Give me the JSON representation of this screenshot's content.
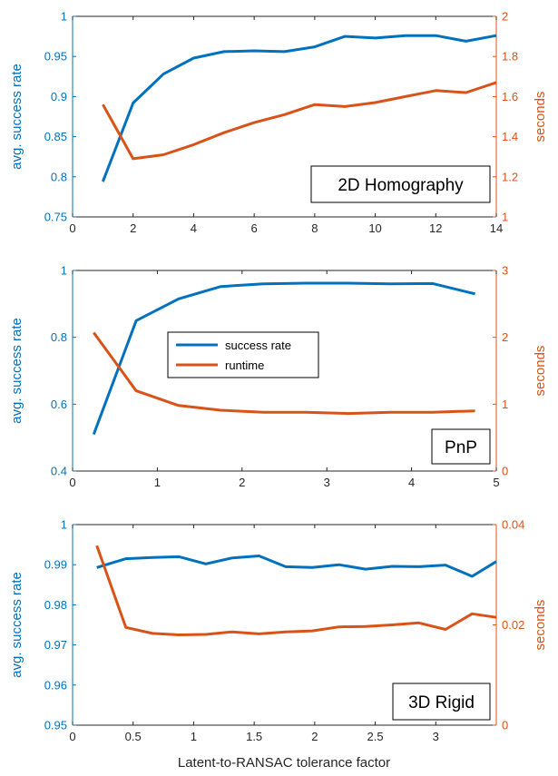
{
  "colors": {
    "success": "#0072BD",
    "runtime": "#D95319",
    "axis": "#262626"
  },
  "xlabel": "Latent-to-RANSAC tolerance factor",
  "legend": {
    "items": [
      "success rate",
      "runtime"
    ]
  },
  "chart_data": [
    {
      "type": "line",
      "box_label": "2D Homography",
      "ylabel_left": "avg. success rate",
      "ylabel_right": "seconds",
      "xlim": [
        0,
        14
      ],
      "xticks": [
        "0",
        "2",
        "4",
        "6",
        "8",
        "10",
        "12",
        "14"
      ],
      "ylim_left": [
        0.75,
        1
      ],
      "yticks_left": [
        "0.75",
        "0.8",
        "0.85",
        "0.9",
        "0.95",
        "1"
      ],
      "ylim_right": [
        1,
        2
      ],
      "yticks_right": [
        "1",
        "1.2",
        "1.4",
        "1.6",
        "1.8",
        "2"
      ],
      "series": [
        {
          "axis": "left",
          "x": [
            1,
            2,
            3,
            4,
            5,
            6,
            7,
            8,
            9,
            10,
            11,
            12,
            13,
            14
          ],
          "values": [
            0.794,
            0.892,
            0.928,
            0.948,
            0.956,
            0.957,
            0.956,
            0.962,
            0.975,
            0.973,
            0.976,
            0.976,
            0.969,
            0.976
          ]
        },
        {
          "axis": "right",
          "x": [
            1,
            2,
            3,
            4,
            5,
            6,
            7,
            8,
            9,
            10,
            11,
            12,
            13,
            14
          ],
          "values": [
            1.56,
            1.29,
            1.31,
            1.36,
            1.42,
            1.47,
            1.51,
            1.56,
            1.55,
            1.57,
            1.6,
            1.63,
            1.62,
            1.67
          ]
        }
      ]
    },
    {
      "type": "line",
      "box_label": "PnP",
      "ylabel_left": "avg. success rate",
      "ylabel_right": "seconds",
      "xlim": [
        0,
        5
      ],
      "xticks": [
        "0",
        "1",
        "2",
        "3",
        "4",
        "5"
      ],
      "ylim_left": [
        0.4,
        1
      ],
      "yticks_left": [
        "0.4",
        "0.6",
        "0.8",
        "1"
      ],
      "ylim_right": [
        0,
        3
      ],
      "yticks_right": [
        "0",
        "1",
        "2",
        "3"
      ],
      "legend": true,
      "series": [
        {
          "axis": "left",
          "x": [
            0.25,
            0.75,
            1.25,
            1.75,
            2.25,
            2.75,
            3.25,
            3.75,
            4.25,
            4.75
          ],
          "values": [
            0.51,
            0.85,
            0.915,
            0.952,
            0.96,
            0.962,
            0.962,
            0.96,
            0.961,
            0.93
          ]
        },
        {
          "axis": "right",
          "x": [
            0.25,
            0.75,
            1.25,
            1.75,
            2.25,
            2.75,
            3.25,
            3.75,
            4.25,
            4.75
          ],
          "values": [
            2.07,
            1.2,
            0.98,
            0.91,
            0.88,
            0.88,
            0.86,
            0.88,
            0.88,
            0.9
          ]
        }
      ]
    },
    {
      "type": "line",
      "box_label": "3D Rigid",
      "ylabel_left": "avg. success rate",
      "ylabel_right": "seconds",
      "xlim": [
        0,
        3.5
      ],
      "xticks": [
        "0",
        "0.5",
        "1",
        "1.5",
        "2",
        "2.5",
        "3"
      ],
      "ylim_left": [
        0.95,
        1
      ],
      "yticks_left": [
        "0.95",
        "0.96",
        "0.97",
        "0.98",
        "0.99",
        "1"
      ],
      "ylim_right": [
        0,
        0.04
      ],
      "yticks_right": [
        "0",
        "0.02",
        "0.04"
      ],
      "series": [
        {
          "axis": "left",
          "x": [
            0.2,
            0.44,
            0.66,
            0.88,
            1.1,
            1.32,
            1.54,
            1.76,
            1.98,
            2.2,
            2.42,
            2.64,
            2.86,
            3.08,
            3.3,
            3.5
          ],
          "values": [
            0.9893,
            0.9915,
            0.9918,
            0.992,
            0.9902,
            0.9917,
            0.9922,
            0.9895,
            0.9893,
            0.99,
            0.9889,
            0.9896,
            0.9895,
            0.9899,
            0.9871,
            0.9908
          ]
        },
        {
          "axis": "right",
          "x": [
            0.2,
            0.44,
            0.66,
            0.88,
            1.1,
            1.32,
            1.54,
            1.76,
            1.98,
            2.2,
            2.42,
            2.64,
            2.86,
            3.08,
            3.3,
            3.5
          ],
          "values": [
            0.0358,
            0.0195,
            0.0183,
            0.018,
            0.0181,
            0.0186,
            0.0182,
            0.0186,
            0.0188,
            0.0196,
            0.0197,
            0.02,
            0.0204,
            0.0191,
            0.0222,
            0.0215
          ]
        }
      ]
    }
  ]
}
